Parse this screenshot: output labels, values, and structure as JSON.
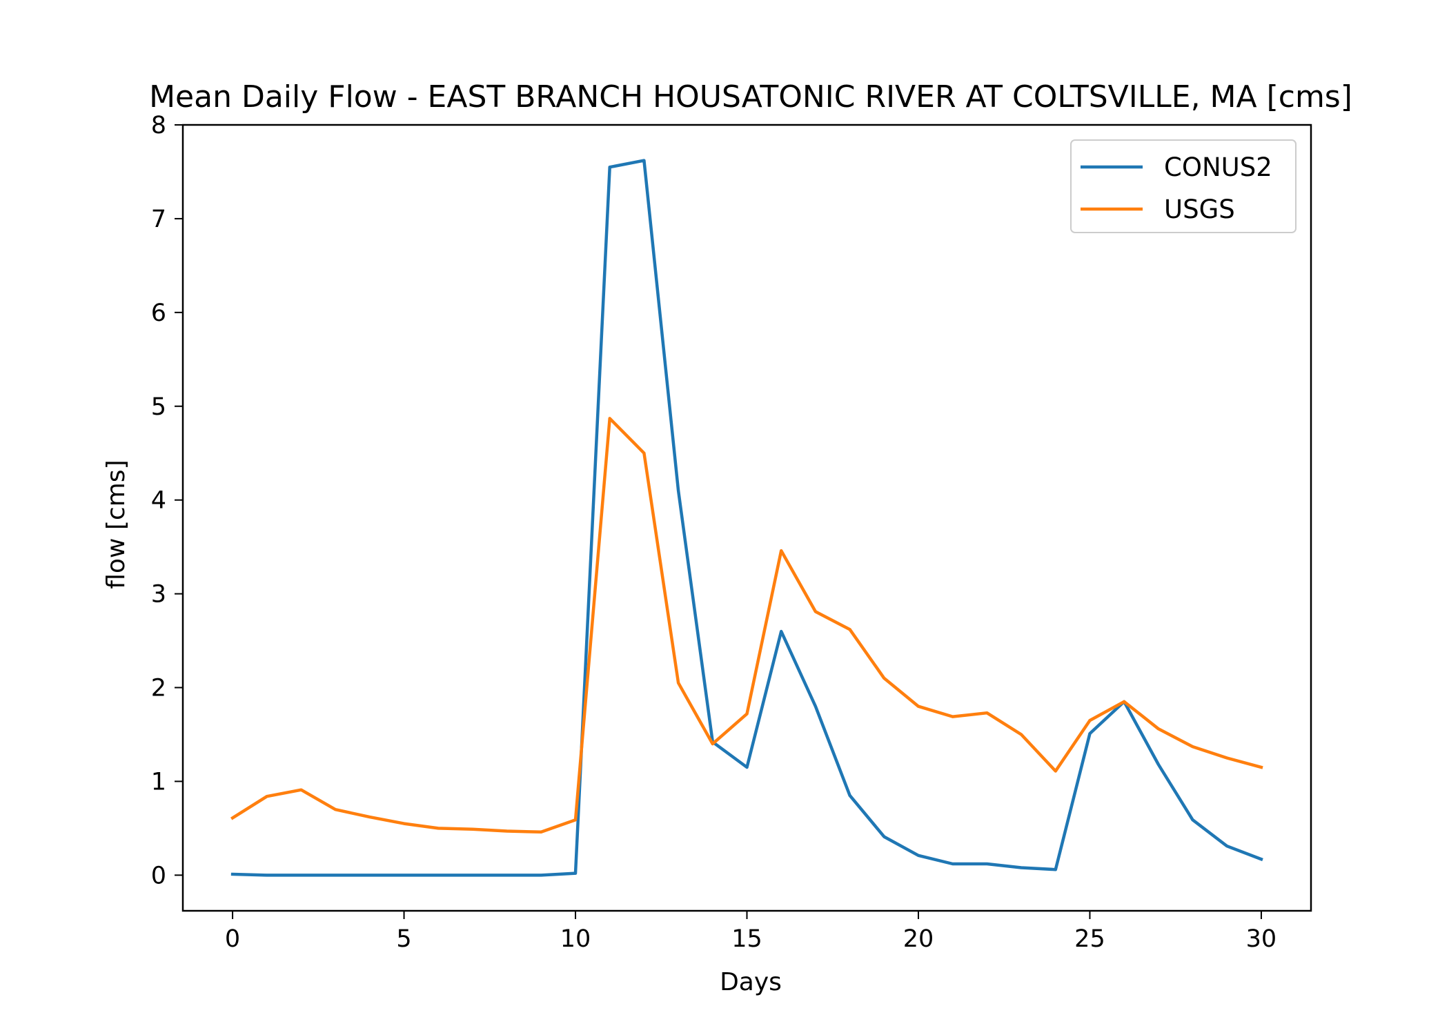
{
  "chart_data": {
    "type": "line",
    "title": "Mean Daily Flow - EAST BRANCH HOUSATONIC RIVER AT COLTSVILLE, MA [cms]",
    "xlabel": "Days",
    "ylabel": "flow [cms]",
    "xlim": [
      -1.45,
      31.45
    ],
    "ylim": [
      -0.38,
      8
    ],
    "xticks": [
      0,
      5,
      10,
      15,
      20,
      25,
      30
    ],
    "yticks": [
      0,
      1,
      2,
      3,
      4,
      5,
      6,
      7,
      8
    ],
    "grid": false,
    "legend_position": "top-right",
    "x": [
      0,
      1,
      2,
      3,
      4,
      5,
      6,
      7,
      8,
      9,
      10,
      11,
      12,
      13,
      14,
      15,
      16,
      17,
      18,
      19,
      20,
      21,
      22,
      23,
      24,
      25,
      26,
      27,
      28,
      29,
      30
    ],
    "series": [
      {
        "name": "CONUS2",
        "color": "#1f77b4",
        "values": [
          0.01,
          0.0,
          0.0,
          0.0,
          0.0,
          0.0,
          0.0,
          0.0,
          0.0,
          0.0,
          0.02,
          7.55,
          7.62,
          4.1,
          1.42,
          1.15,
          2.6,
          1.8,
          0.85,
          0.41,
          0.21,
          0.12,
          0.12,
          0.08,
          0.06,
          1.51,
          1.85,
          1.18,
          0.59,
          0.31,
          0.17
        ]
      },
      {
        "name": "USGS",
        "color": "#ff7f0e",
        "values": [
          0.61,
          0.84,
          0.91,
          0.7,
          0.62,
          0.55,
          0.5,
          0.49,
          0.47,
          0.46,
          0.59,
          4.87,
          4.5,
          2.05,
          1.4,
          1.72,
          3.46,
          2.81,
          2.62,
          2.1,
          1.8,
          1.69,
          1.73,
          1.5,
          1.11,
          1.65,
          1.85,
          1.56,
          1.37,
          1.25,
          1.15
        ]
      }
    ]
  }
}
